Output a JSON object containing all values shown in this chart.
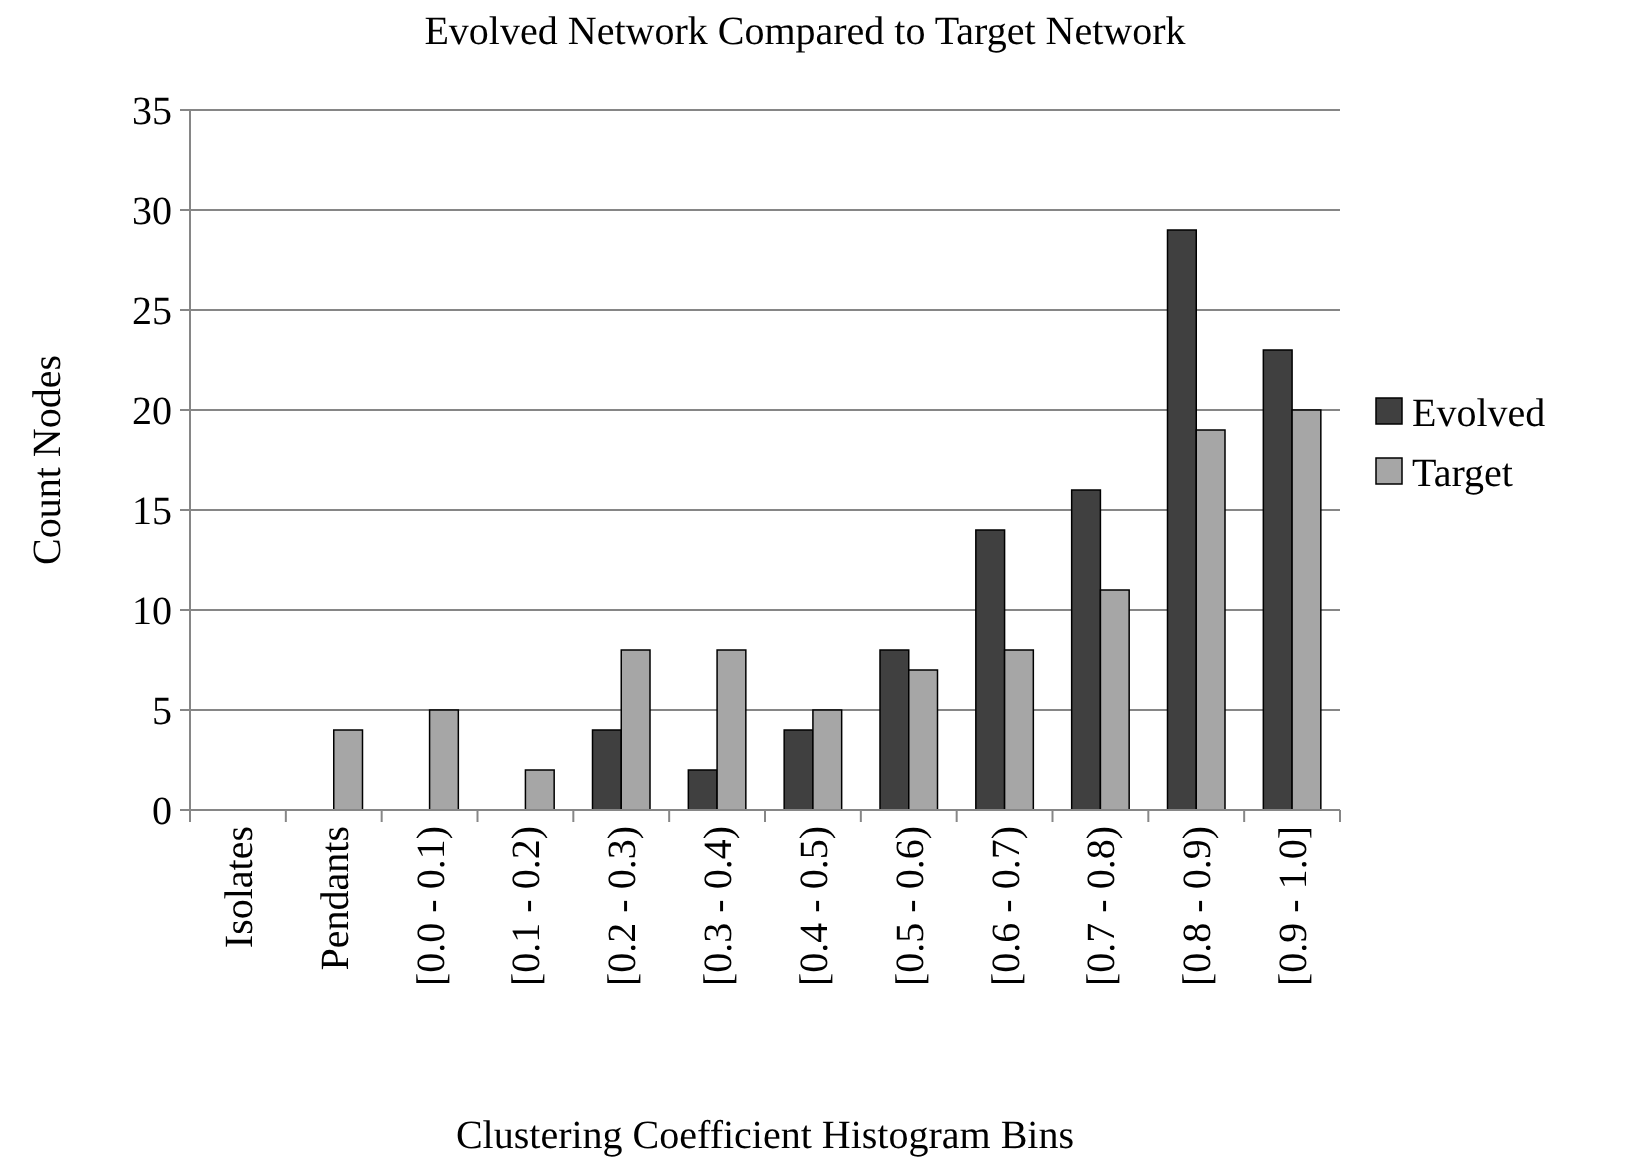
{
  "chart_data": {
    "type": "bar",
    "title": "Evolved Network Compared to Target Network",
    "xlabel": "Clustering Coefficient Histogram Bins",
    "ylabel": "Count Nodes",
    "categories": [
      "Isolates",
      "Pendants",
      "[0.0 - 0.1)",
      "[0.1 - 0.2)",
      "[0.2 - 0.3)",
      "[0.3 - 0.4)",
      "[0.4 - 0.5)",
      "[0.5 - 0.6)",
      "[0.6 - 0.7)",
      "[0.7 - 0.8)",
      "[0.8 - 0.9)",
      "[0.9 - 1.0]"
    ],
    "series": [
      {
        "name": "Evolved",
        "color": "#404040",
        "values": [
          0,
          0,
          0,
          0,
          4,
          2,
          4,
          8,
          14,
          16,
          29,
          23
        ]
      },
      {
        "name": "Target",
        "color": "#a6a6a6",
        "values": [
          0,
          4,
          5,
          2,
          8,
          8,
          5,
          7,
          8,
          11,
          19,
          20
        ]
      }
    ],
    "ylim": [
      0,
      35
    ],
    "yticks": [
      0,
      5,
      10,
      15,
      20,
      25,
      30,
      35
    ],
    "grid": "y",
    "legend": "right"
  }
}
